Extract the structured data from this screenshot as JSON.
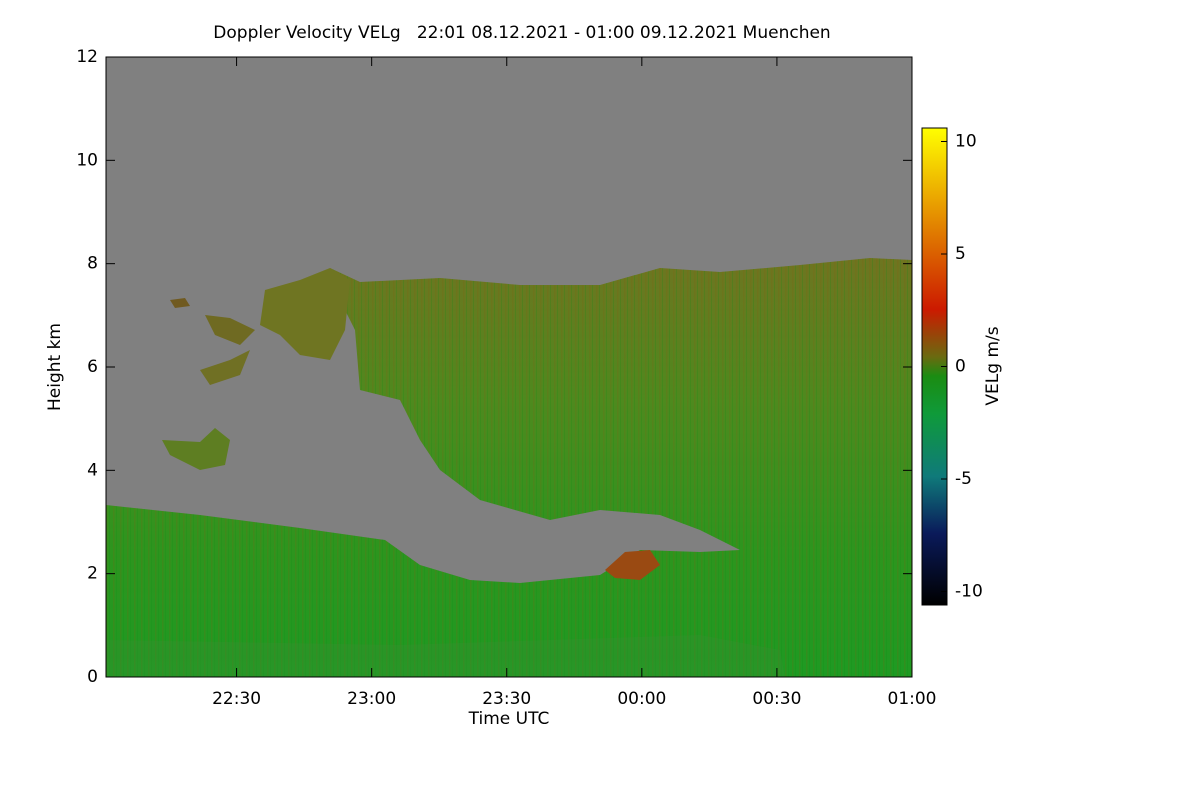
{
  "chart_data": {
    "type": "heatmap",
    "title": "Doppler Velocity VELg   22:01 08.12.2021 - 01:00 09.12.2021 Muenchen",
    "x_label": "Time UTC",
    "y_label": "Height km",
    "colorbar_label": "VELg m/s",
    "xlim": [
      "22:01",
      "01:00"
    ],
    "xticks": [
      "22:30",
      "23:00",
      "23:30",
      "00:00",
      "00:30",
      "01:00"
    ],
    "ylim": [
      0,
      12
    ],
    "yticks": [
      0,
      2,
      4,
      6,
      8,
      10,
      12
    ],
    "clim": [
      -10.6,
      10.6
    ],
    "cticks": [
      -10,
      -5,
      0,
      5,
      10
    ],
    "background": "#808080"
  }
}
